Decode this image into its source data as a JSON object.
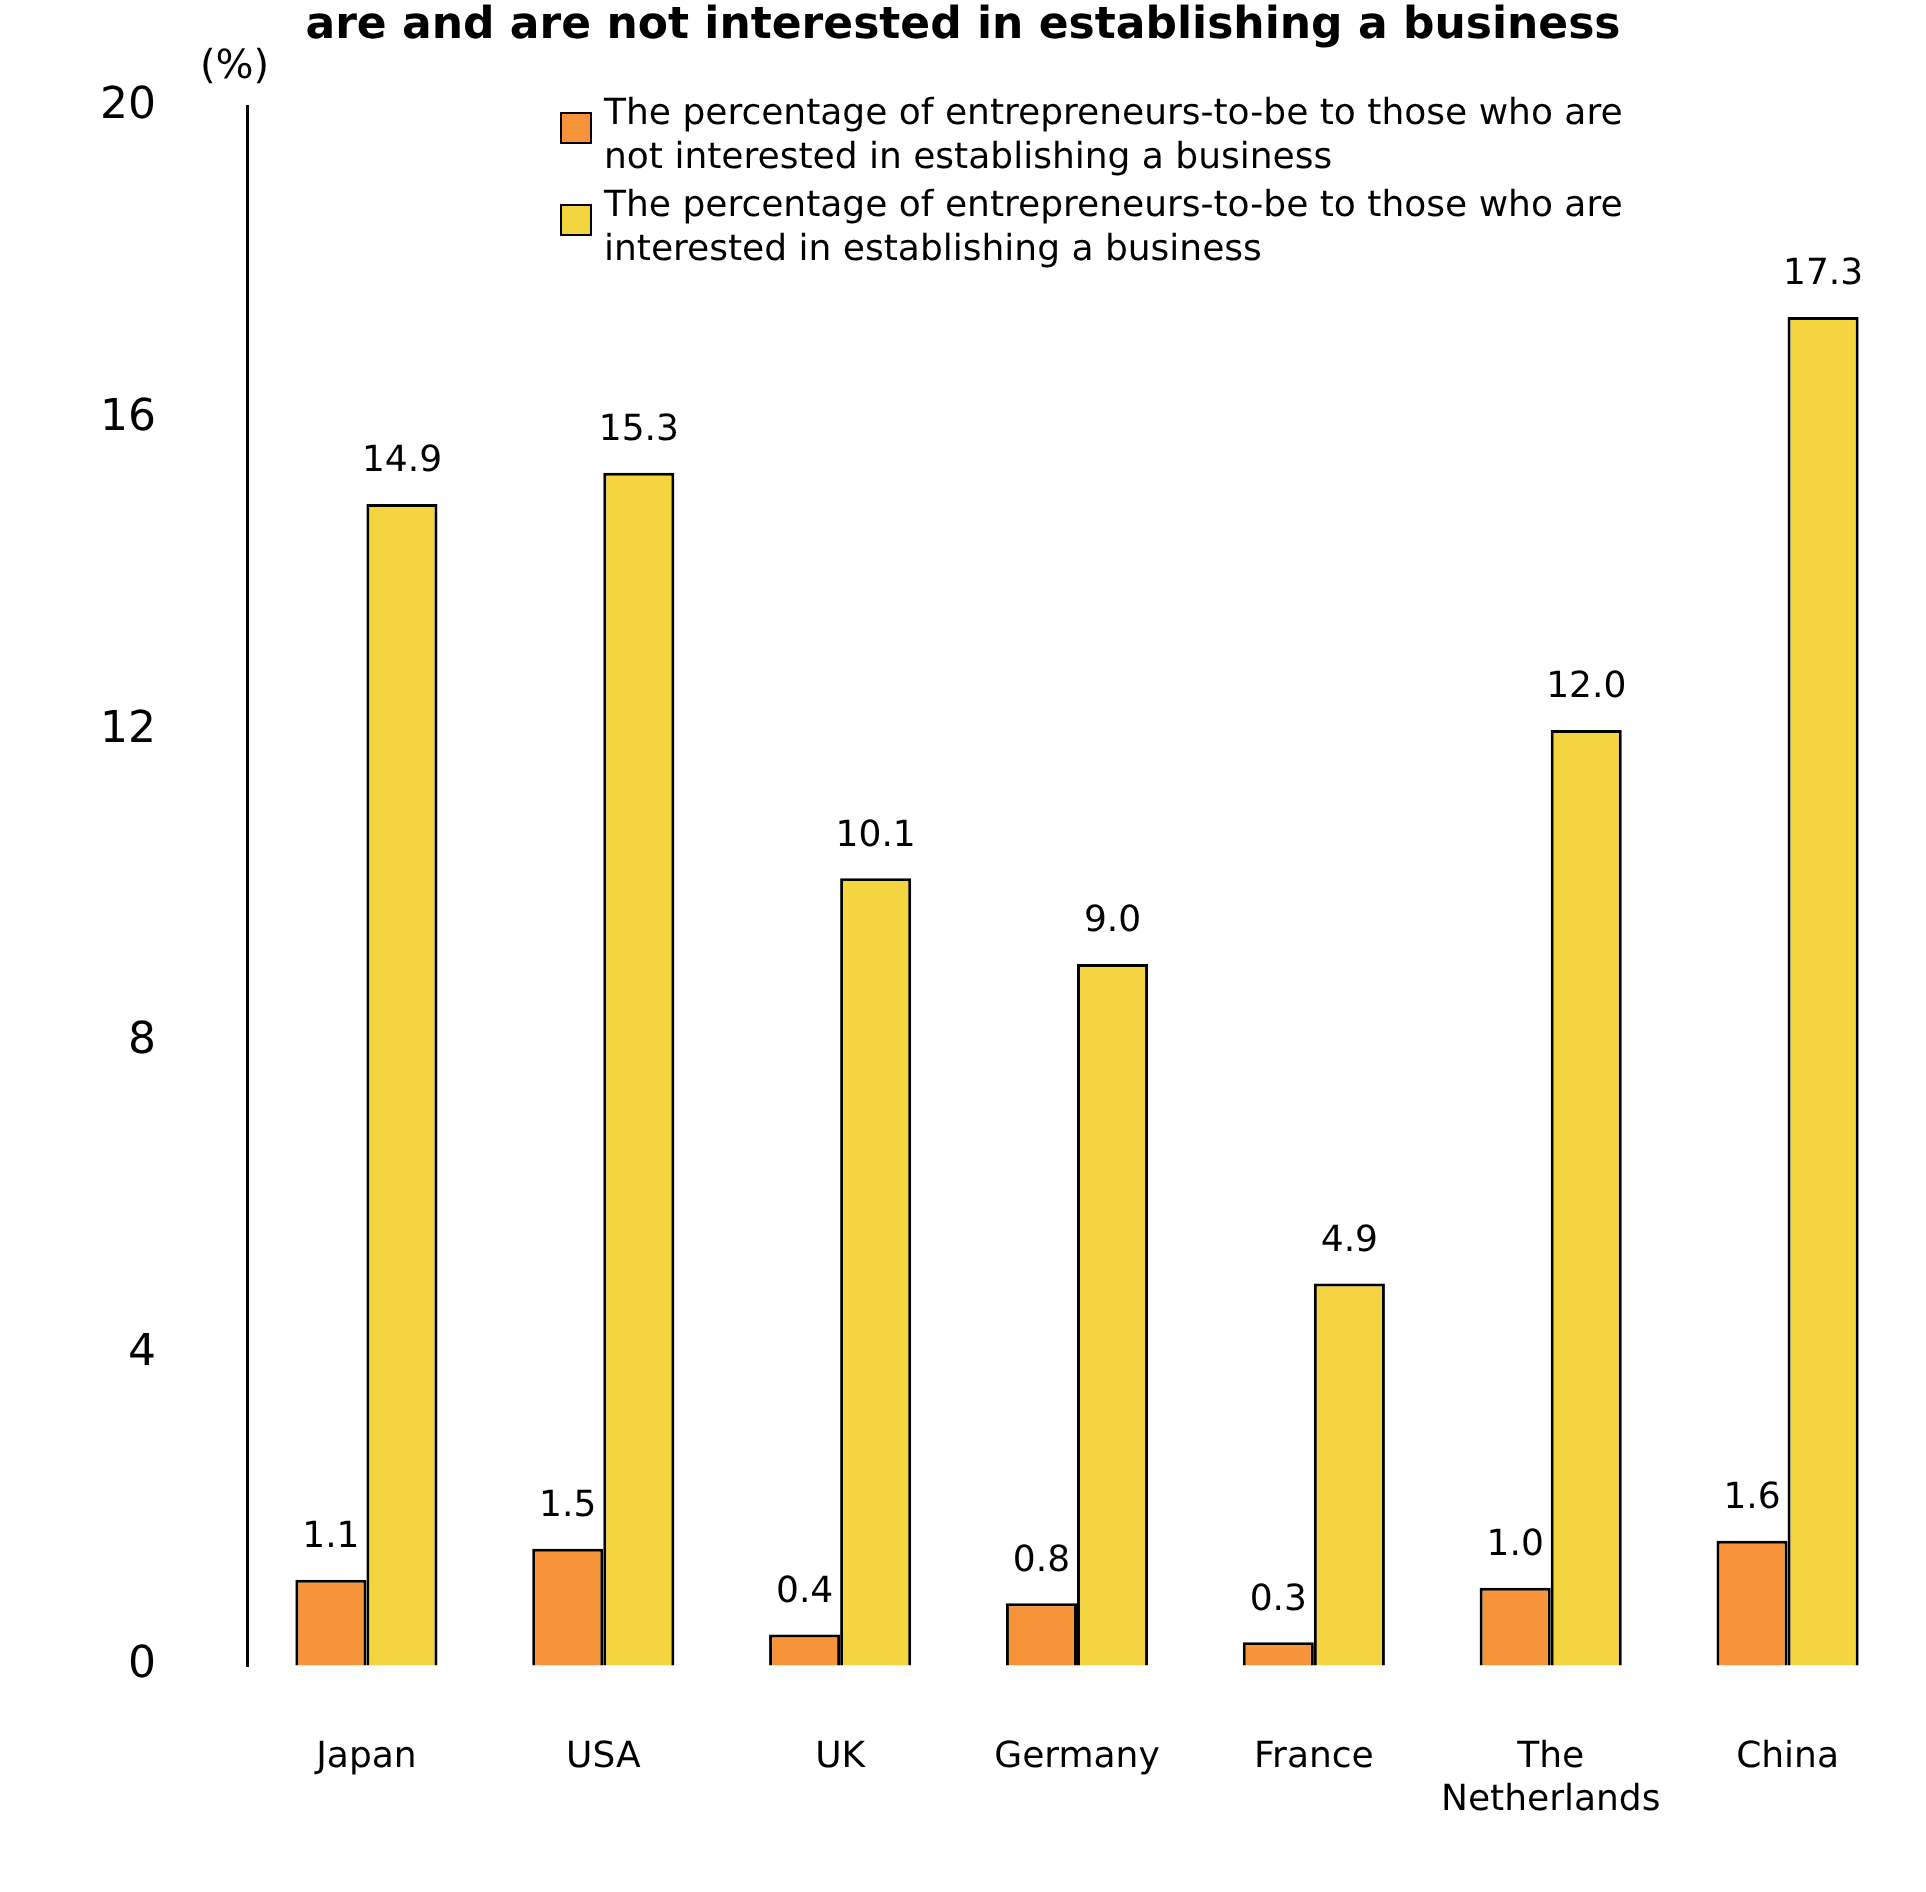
{
  "chart_data": {
    "type": "bar",
    "title": "are and are not interested in establishing a business",
    "ylabel": "(%)",
    "categories": [
      "Japan",
      "USA",
      "UK",
      "Germany",
      "France",
      "The Netherlands",
      "China"
    ],
    "series": [
      {
        "name": "The percentage of entrepreneurs-to-be to those who are not interested in establishing a business",
        "color": "#f7943a",
        "values": [
          1.1,
          1.5,
          0.4,
          0.8,
          0.3,
          1.0,
          1.6
        ],
        "value_labels": [
          "1.1",
          "1.5",
          "0.4",
          "0.8",
          "0.3",
          "1.0",
          "1.6"
        ]
      },
      {
        "name": "The percentage of entrepreneurs-to-be to those who are interested in establishing a business",
        "color": "#f5d442",
        "values": [
          14.9,
          15.3,
          10.1,
          9.0,
          4.9,
          12.0,
          17.3
        ],
        "value_labels": [
          "14.9",
          "15.3",
          "10.1",
          "9.0",
          "4.9",
          "12.0",
          "17.3"
        ]
      }
    ],
    "ylim": [
      0,
      20
    ],
    "yticks": [
      0,
      4,
      8,
      12,
      16,
      20
    ],
    "grid": false,
    "legend": "top right"
  }
}
